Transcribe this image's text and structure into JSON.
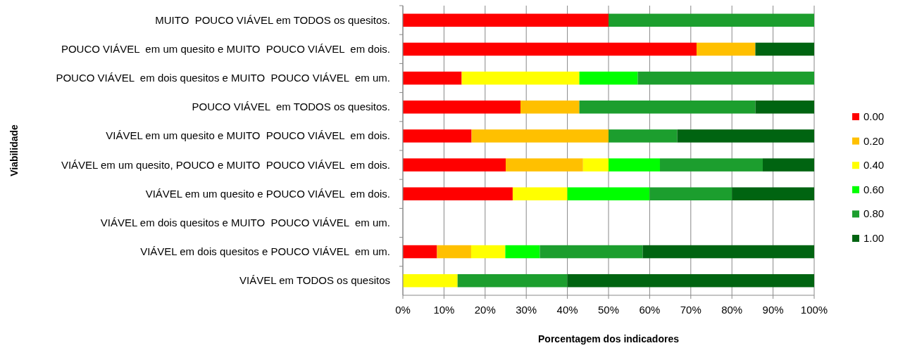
{
  "chart_data": {
    "type": "bar",
    "orientation": "horizontal",
    "stacked": true,
    "xlabel": "Porcentagem dos indicadores",
    "ylabel": "Viabilidade",
    "categories": [
      "MUITO  POUCO VIÁVEL em TODOS os quesitos.",
      "POUCO VIÁVEL  em um quesito e MUITO  POUCO VIÁVEL  em dois.",
      "POUCO VIÁVEL  em dois quesitos e MUITO  POUCO VIÁVEL  em um.",
      "POUCO VIÁVEL  em TODOS os quesitos.",
      "VIÁVEL em um quesito e MUITO  POUCO VIÁVEL  em dois.",
      "VIÁVEL em um quesito, POUCO e MUITO  POUCO VIÁVEL  em dois.",
      "VIÁVEL em um quesito e POUCO VIÁVEL  em dois.",
      "VIÁVEL em dois quesitos e MUITO  POUCO VIÁVEL  em um.",
      "VIÁVEL em dois quesitos e POUCO VIÁVEL  em um.",
      "VIÁVEL em TODOS os quesitos"
    ],
    "series": [
      {
        "name": "0.00",
        "color": "#ff0000",
        "values": [
          50,
          71.4,
          14.3,
          28.6,
          16.7,
          25,
          26.7,
          null,
          8.3,
          null
        ]
      },
      {
        "name": "0.20",
        "color": "#ffc000",
        "values": [
          null,
          14.3,
          null,
          14.3,
          33.3,
          18.8,
          null,
          null,
          8.3,
          null
        ]
      },
      {
        "name": "0.40",
        "color": "#ffff00",
        "values": [
          null,
          null,
          28.6,
          null,
          null,
          6.2,
          13.3,
          null,
          8.3,
          13.3
        ]
      },
      {
        "name": "0.60",
        "color": "#00ff00",
        "values": [
          null,
          null,
          14.2,
          null,
          null,
          12.5,
          20,
          null,
          8.4,
          null
        ]
      },
      {
        "name": "0.80",
        "color": "#1c9e2e",
        "values": [
          50,
          null,
          42.9,
          42.8,
          16.7,
          25,
          20,
          null,
          25,
          26.7
        ]
      },
      {
        "name": "1.00",
        "color": "#006411",
        "values": [
          null,
          14.3,
          null,
          14.3,
          33.3,
          12.5,
          20,
          null,
          41.7,
          60
        ]
      }
    ],
    "xlim": [
      0,
      100
    ],
    "xticks": [
      {
        "value": 0,
        "label": "0%"
      },
      {
        "value": 10,
        "label": "10%"
      },
      {
        "value": 20,
        "label": "20%"
      },
      {
        "value": 30,
        "label": "30%"
      },
      {
        "value": 40,
        "label": "40%"
      },
      {
        "value": 50,
        "label": "50%"
      },
      {
        "value": 60,
        "label": "60%"
      },
      {
        "value": 70,
        "label": "70%"
      },
      {
        "value": 80,
        "label": "80%"
      },
      {
        "value": 90,
        "label": "90%"
      },
      {
        "value": 100,
        "label": "100%"
      }
    ],
    "grid": "x",
    "legend": "right"
  }
}
